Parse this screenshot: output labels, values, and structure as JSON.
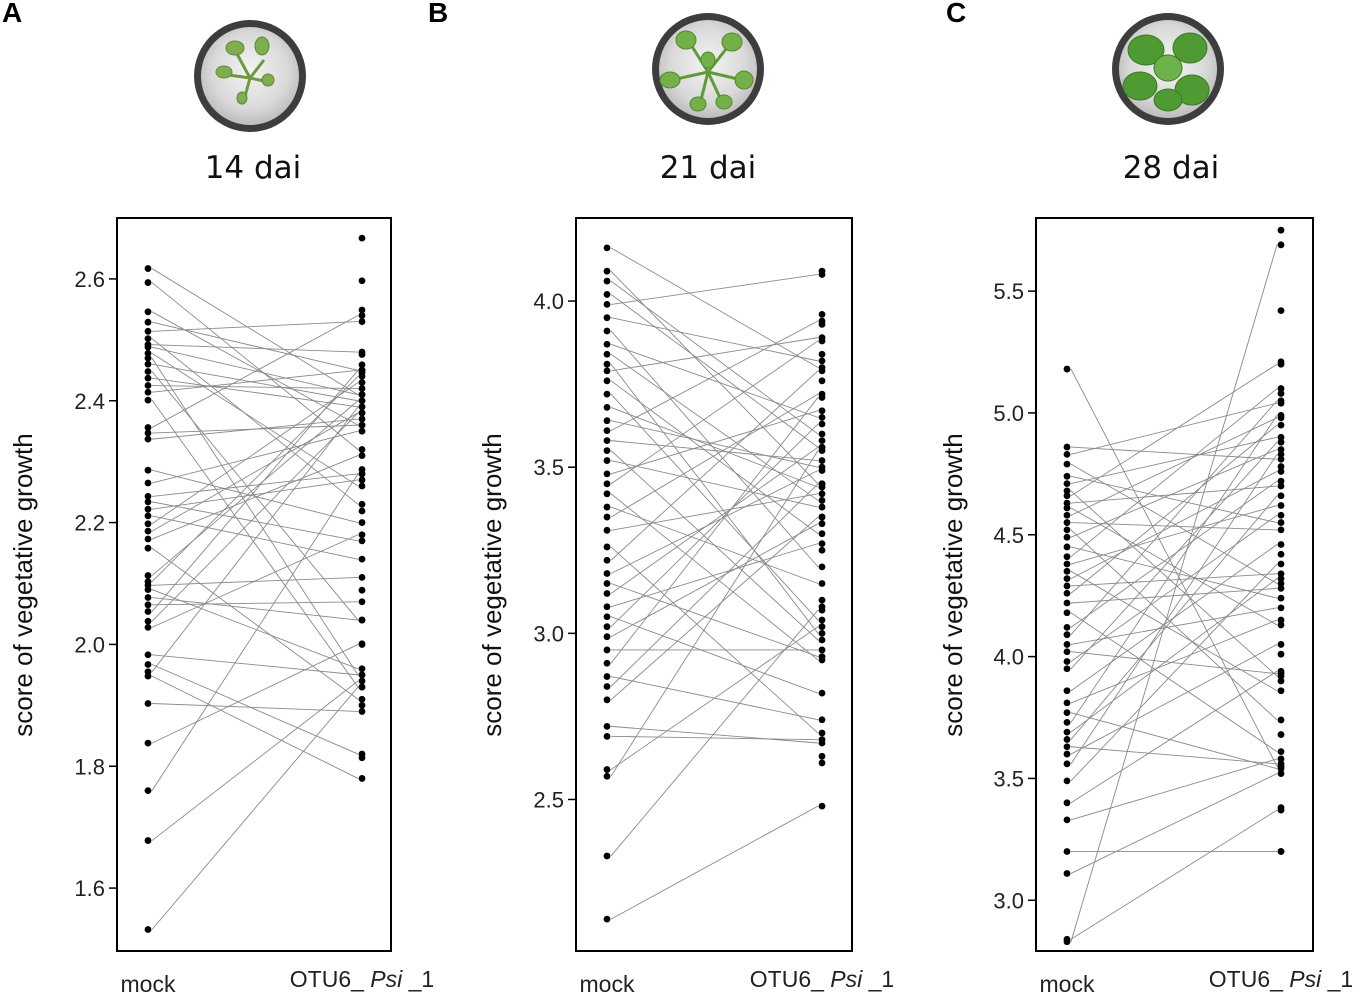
{
  "chart_data": [
    {
      "type": "scatter",
      "panel": "A",
      "title": "14 dai",
      "ylabel": "score of vegetative growth",
      "ylim": [
        1.5,
        2.7
      ],
      "yticks": [
        1.6,
        1.8,
        2.0,
        2.2,
        2.4,
        2.6
      ],
      "ytick_labels": [
        "1.6",
        "1.8",
        "2.0",
        "2.2",
        "2.4",
        "2.6"
      ],
      "categories": [
        "mock",
        "OTU6_ Psi _1"
      ],
      "category_parts": [
        {
          "a": "mock",
          "b": "",
          "c": ""
        },
        {
          "a": "OTU6_ ",
          "b": "Psi",
          "c": " _1"
        }
      ],
      "pairs": [
        [
          2.617,
          2.41
        ],
        [
          2.594,
          2.32
        ],
        [
          2.546,
          2.36
        ],
        [
          2.529,
          2.45
        ],
        [
          2.514,
          2.53
        ],
        [
          2.502,
          2.23
        ],
        [
          2.492,
          2.48
        ],
        [
          2.488,
          2.41
        ],
        [
          2.478,
          2.26
        ],
        [
          2.47,
          1.95
        ],
        [
          2.46,
          2.4
        ],
        [
          2.448,
          2.04
        ],
        [
          2.437,
          2.39
        ],
        [
          2.425,
          2.42
        ],
        [
          2.414,
          2.45
        ],
        [
          2.401,
          1.93
        ],
        [
          2.356,
          2.54
        ],
        [
          2.347,
          2.36
        ],
        [
          2.337,
          2.37
        ],
        [
          2.286,
          2.2
        ],
        [
          2.265,
          2.35
        ],
        [
          2.243,
          2.28
        ],
        [
          2.234,
          2.17
        ],
        [
          2.222,
          2.27
        ],
        [
          2.211,
          2.14
        ],
        [
          2.198,
          2.43
        ],
        [
          2.186,
          2.38
        ],
        [
          2.173,
          2.31
        ],
        [
          2.158,
          1.91
        ],
        [
          2.113,
          2.4
        ],
        [
          2.103,
          2.44
        ],
        [
          2.097,
          2.11
        ],
        [
          2.09,
          1.96
        ],
        [
          2.077,
          2.04
        ],
        [
          2.065,
          2.07
        ],
        [
          2.054,
          2.45
        ],
        [
          2.038,
          2.38
        ],
        [
          2.028,
          2.18
        ],
        [
          1.983,
          1.95
        ],
        [
          1.967,
          1.82
        ],
        [
          1.955,
          2.39
        ],
        [
          1.948,
          1.78
        ],
        [
          1.903,
          1.89
        ],
        [
          1.838,
          2.0
        ],
        [
          1.76,
          2.28
        ],
        [
          1.678,
          1.94
        ],
        [
          1.532,
          1.93
        ]
      ],
      "extra_right": [
        2.667,
        2.597,
        2.549,
        2.476,
        2.459,
        2.446,
        2.287,
        2.219,
        2.089,
        2.001,
        1.814,
        1.9
      ]
    },
    {
      "type": "scatter",
      "panel": "B",
      "title": "21 dai",
      "ylabel": "score of vegetative growth",
      "ylim": [
        2.05,
        4.25
      ],
      "yticks": [
        2.5,
        3.0,
        3.5,
        4.0
      ],
      "ytick_labels": [
        "2.5",
        "3.0",
        "3.5",
        "4.0"
      ],
      "categories": [
        "mock",
        "OTU6_ Psi _1"
      ],
      "category_parts": [
        {
          "a": "mock",
          "b": "",
          "c": ""
        },
        {
          "a": "OTU6_ ",
          "b": "Psi",
          "c": " _1"
        }
      ],
      "pairs": [
        [
          4.16,
          3.8
        ],
        [
          4.09,
          3.45
        ],
        [
          4.06,
          3.6
        ],
        [
          4.02,
          3.56
        ],
        [
          3.99,
          4.08
        ],
        [
          3.95,
          3.82
        ],
        [
          3.91,
          3.2
        ],
        [
          3.87,
          3.65
        ],
        [
          3.84,
          3.4
        ],
        [
          3.81,
          3.0
        ],
        [
          3.79,
          3.89
        ],
        [
          3.76,
          3.3
        ],
        [
          3.72,
          3.04
        ],
        [
          3.68,
          3.44
        ],
        [
          3.64,
          3.5
        ],
        [
          3.61,
          3.94
        ],
        [
          3.58,
          3.52
        ],
        [
          3.55,
          2.98
        ],
        [
          3.52,
          3.38
        ],
        [
          3.48,
          3.67
        ],
        [
          3.45,
          3.88
        ],
        [
          3.42,
          2.92
        ],
        [
          3.38,
          3.15
        ],
        [
          3.35,
          3.72
        ],
        [
          3.31,
          3.42
        ],
        [
          3.26,
          2.7
        ],
        [
          3.22,
          3.79
        ],
        [
          3.18,
          3.49
        ],
        [
          3.15,
          2.93
        ],
        [
          3.12,
          3.56
        ],
        [
          3.08,
          3.27
        ],
        [
          3.05,
          2.82
        ],
        [
          3.02,
          3.63
        ],
        [
          2.99,
          3.33
        ],
        [
          2.95,
          2.95
        ],
        [
          2.91,
          3.71
        ],
        [
          2.87,
          2.74
        ],
        [
          2.84,
          3.45
        ],
        [
          2.8,
          3.35
        ],
        [
          2.72,
          2.67
        ],
        [
          2.69,
          2.68
        ],
        [
          2.59,
          3.02
        ],
        [
          2.57,
          3.55
        ],
        [
          2.33,
          3.07
        ],
        [
          2.14,
          2.48
        ]
      ],
      "extra_right": [
        4.09,
        3.96,
        3.93,
        3.84,
        3.76,
        3.58,
        3.35,
        3.25,
        3.1,
        3.08,
        2.63,
        2.61
      ]
    },
    {
      "type": "scatter",
      "panel": "C",
      "title": "28 dai",
      "ylabel": "score of vegetative growth",
      "ylim": [
        2.8,
        5.8
      ],
      "yticks": [
        3.0,
        3.5,
        4.0,
        4.5,
        5.0,
        5.5
      ],
      "ytick_labels": [
        "3.0",
        "3.5",
        "4.0",
        "4.5",
        "5.0",
        "5.5"
      ],
      "categories": [
        "mock",
        "OTU6_ Psi _1"
      ],
      "category_parts": [
        {
          "a": "mock",
          "b": "",
          "c": ""
        },
        {
          "a": "OTU6_ ",
          "b": "Psi",
          "c": " _1"
        }
      ],
      "pairs": [
        [
          5.18,
          3.55
        ],
        [
          4.86,
          4.81
        ],
        [
          4.83,
          5.04
        ],
        [
          4.79,
          4.3
        ],
        [
          4.74,
          4.55
        ],
        [
          4.71,
          4.9
        ],
        [
          4.68,
          3.92
        ],
        [
          4.66,
          5.2
        ],
        [
          4.63,
          4.7
        ],
        [
          4.61,
          4.13
        ],
        [
          4.58,
          4.98
        ],
        [
          4.55,
          4.52
        ],
        [
          4.52,
          3.74
        ],
        [
          4.49,
          4.85
        ],
        [
          4.45,
          4.24
        ],
        [
          4.41,
          5.1
        ],
        [
          4.38,
          4.62
        ],
        [
          4.35,
          3.86
        ],
        [
          4.32,
          4.76
        ],
        [
          4.29,
          4.34
        ],
        [
          4.26,
          4.95
        ],
        [
          4.22,
          4.28
        ],
        [
          4.18,
          3.61
        ],
        [
          4.12,
          4.72
        ],
        [
          4.09,
          5.05
        ],
        [
          4.05,
          4.2
        ],
        [
          4.02,
          3.93
        ],
        [
          3.98,
          4.58
        ],
        [
          3.95,
          4.88
        ],
        [
          3.86,
          4.46
        ],
        [
          3.81,
          4.15
        ],
        [
          3.77,
          3.54
        ],
        [
          3.73,
          4.99
        ],
        [
          3.69,
          4.32
        ],
        [
          3.66,
          4.66
        ],
        [
          3.63,
          3.56
        ],
        [
          3.6,
          4.05
        ],
        [
          3.56,
          4.83
        ],
        [
          3.49,
          4.38
        ],
        [
          3.4,
          3.94
        ],
        [
          3.33,
          3.58
        ],
        [
          3.2,
          3.2
        ],
        [
          3.11,
          3.52
        ],
        [
          2.84,
          3.37
        ],
        [
          2.83,
          5.69
        ]
      ],
      "extra_right": [
        5.75,
        5.42,
        5.21,
        5.08,
        4.78,
        4.42,
        4.01,
        3.9,
        3.68,
        3.55,
        3.38,
        3.2
      ]
    }
  ]
}
